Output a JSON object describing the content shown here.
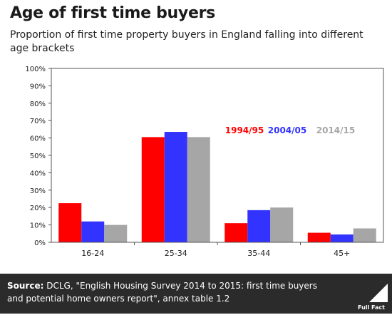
{
  "header": {
    "title": "Age of first time buyers",
    "subtitle": "Proportion of first time property buyers in England falling into different age brackets"
  },
  "footer": {
    "source_label": "Source:",
    "source_text": "DCLG, \"English Housing Survey 2014 to 2015: first time buyers and potential home owners report\", annex table 1.2",
    "logo_text": "Full Fact"
  },
  "chart_data": {
    "type": "bar",
    "title": "",
    "xlabel": "",
    "ylabel": "",
    "ylim": [
      0,
      100
    ],
    "yticks": [
      0,
      10,
      20,
      30,
      40,
      50,
      60,
      70,
      80,
      90,
      100
    ],
    "ytick_labels": [
      "0%",
      "10%",
      "20%",
      "30%",
      "40%",
      "50%",
      "60%",
      "70%",
      "80%",
      "90%",
      "100%"
    ],
    "categories": [
      "16-24",
      "25-34",
      "35-44",
      "45+"
    ],
    "legend_position": "inside-right",
    "grid": false,
    "series": [
      {
        "name": "1994/95",
        "color": "#ff0000",
        "values": [
          22.5,
          60.5,
          11,
          5.5
        ]
      },
      {
        "name": "2004/05",
        "color": "#3333ff",
        "values": [
          12,
          63.5,
          18.5,
          4.5
        ]
      },
      {
        "name": "2014/15",
        "color": "#a6a6a6",
        "values": [
          10,
          60.5,
          20,
          8
        ]
      }
    ]
  }
}
